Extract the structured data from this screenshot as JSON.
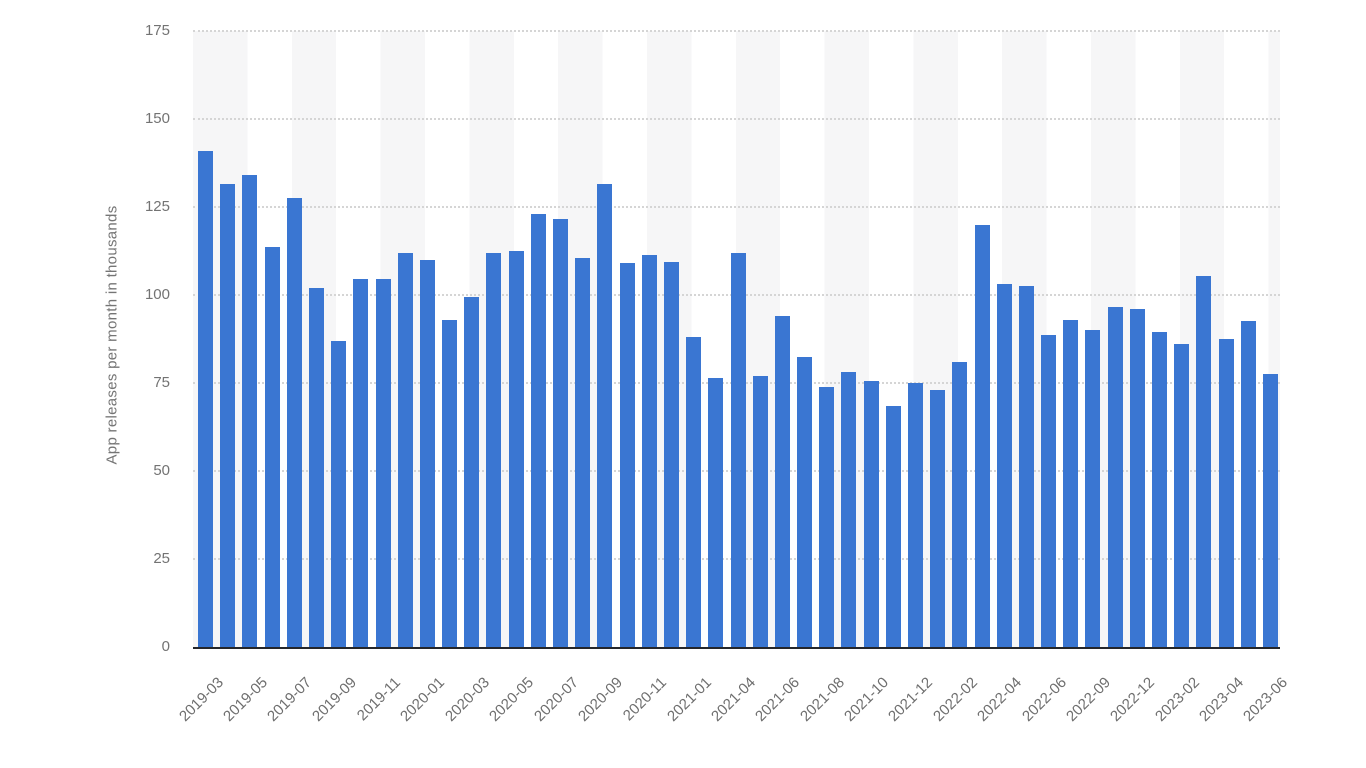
{
  "chart_data": {
    "type": "bar",
    "title": "",
    "ylabel": "App releases per month in thousands",
    "xlabel": "",
    "ylim": [
      0,
      175
    ],
    "yticks": [
      0,
      25,
      50,
      75,
      100,
      125,
      150,
      175
    ],
    "grid": "horizontal dotted gridlines; vertical alternating light-gray bands",
    "legend": "none",
    "bar_color": "#3a76d2",
    "band_color": "#f6f6f7",
    "grid_color": "#d5d5d5",
    "axis_line_color": "#24262b",
    "tick_text_color": "#737373",
    "x_label_every_n_bars": 2,
    "categories": [
      "2019-03",
      "",
      "2019-05",
      "",
      "2019-07",
      "",
      "2019-09",
      "",
      "2019-11",
      "",
      "2020-01",
      "",
      "2020-03",
      "",
      "2020-05",
      "",
      "2020-07",
      "",
      "2020-09",
      "",
      "2020-11",
      "",
      "2021-01",
      "",
      "2021-04",
      "",
      "2021-06",
      "",
      "2021-08",
      "",
      "2021-10",
      "",
      "2021-12",
      "",
      "2022-02",
      "",
      "2022-04",
      "",
      "2022-06",
      "",
      "2022-09",
      "",
      "2022-12",
      "",
      "2023-02",
      "",
      "2023-04",
      "",
      "2023-06"
    ],
    "values": [
      141,
      131.5,
      134,
      113.5,
      127.5,
      102,
      87,
      104.5,
      104.5,
      112,
      110,
      93,
      99.5,
      112,
      112.5,
      123,
      121.5,
      110.5,
      131.5,
      109,
      111.5,
      109.5,
      88,
      76.5,
      112,
      77,
      94,
      82.5,
      74,
      78,
      75.5,
      68.5,
      75,
      73,
      81,
      120,
      103,
      102.5,
      88.5,
      93,
      90,
      96.5,
      96,
      89.5,
      86,
      105.5,
      87.5,
      92.5,
      77.5
    ]
  }
}
